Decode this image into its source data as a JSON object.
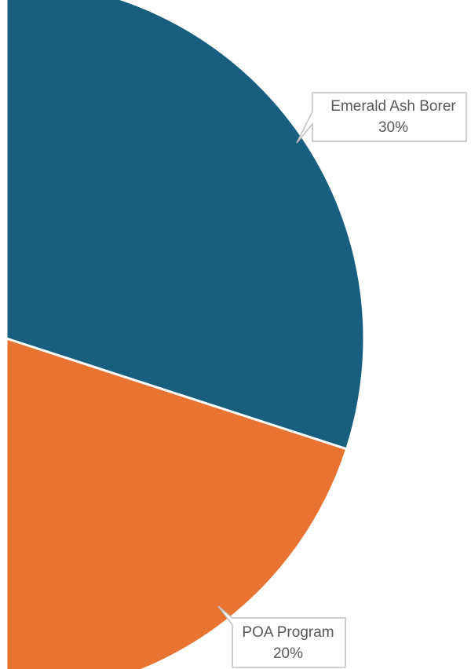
{
  "chart_data": {
    "type": "pie",
    "slices": [
      {
        "label": "Emerald Ash Borer",
        "value": 30,
        "value_label": "30%",
        "color": "#175e7f"
      },
      {
        "label": "POA Program",
        "value": 20,
        "value_label": "20%",
        "color": "#e97331"
      }
    ],
    "legend": "none",
    "data_labels": "callouts"
  }
}
